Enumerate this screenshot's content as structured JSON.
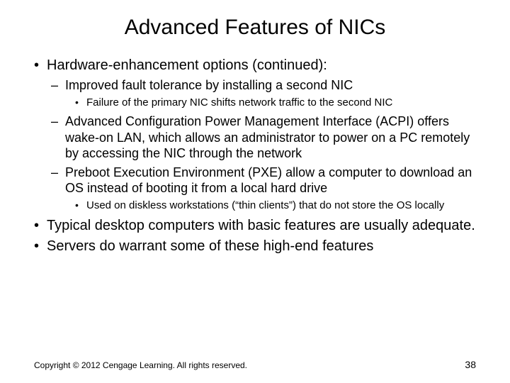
{
  "title": "Advanced Features of NICs",
  "bullets": {
    "b1": "Hardware-enhancement options (continued):",
    "b1_1": "Improved fault tolerance by installing a second NIC",
    "b1_1_1": "Failure of the primary NIC shifts network traffic to the second NIC",
    "b1_2": "Advanced Configuration Power Management Interface (ACPI) offers wake-on LAN, which allows an administrator to power on a PC remotely by accessing the NIC through the network",
    "b1_3": "Preboot Execution Environment (PXE) allow a computer to download an OS instead of booting it from a local hard drive",
    "b1_3_1": "Used on diskless workstations (“thin clients”) that do not store the OS locally",
    "b2": "Typical desktop computers with basic features are usually adequate.",
    "b3": "Servers do warrant some of these high-end features"
  },
  "footer": {
    "copyright": "Copyright © 2012 Cengage Learning. All rights reserved.",
    "page": "38"
  },
  "style": {
    "background_color": "#ffffff",
    "text_color": "#000000",
    "title_fontsize": 30,
    "l1_fontsize": 20,
    "l2_fontsize": 18,
    "l3_fontsize": 15,
    "footer_fontsize": 12,
    "font_family": "Arial"
  }
}
